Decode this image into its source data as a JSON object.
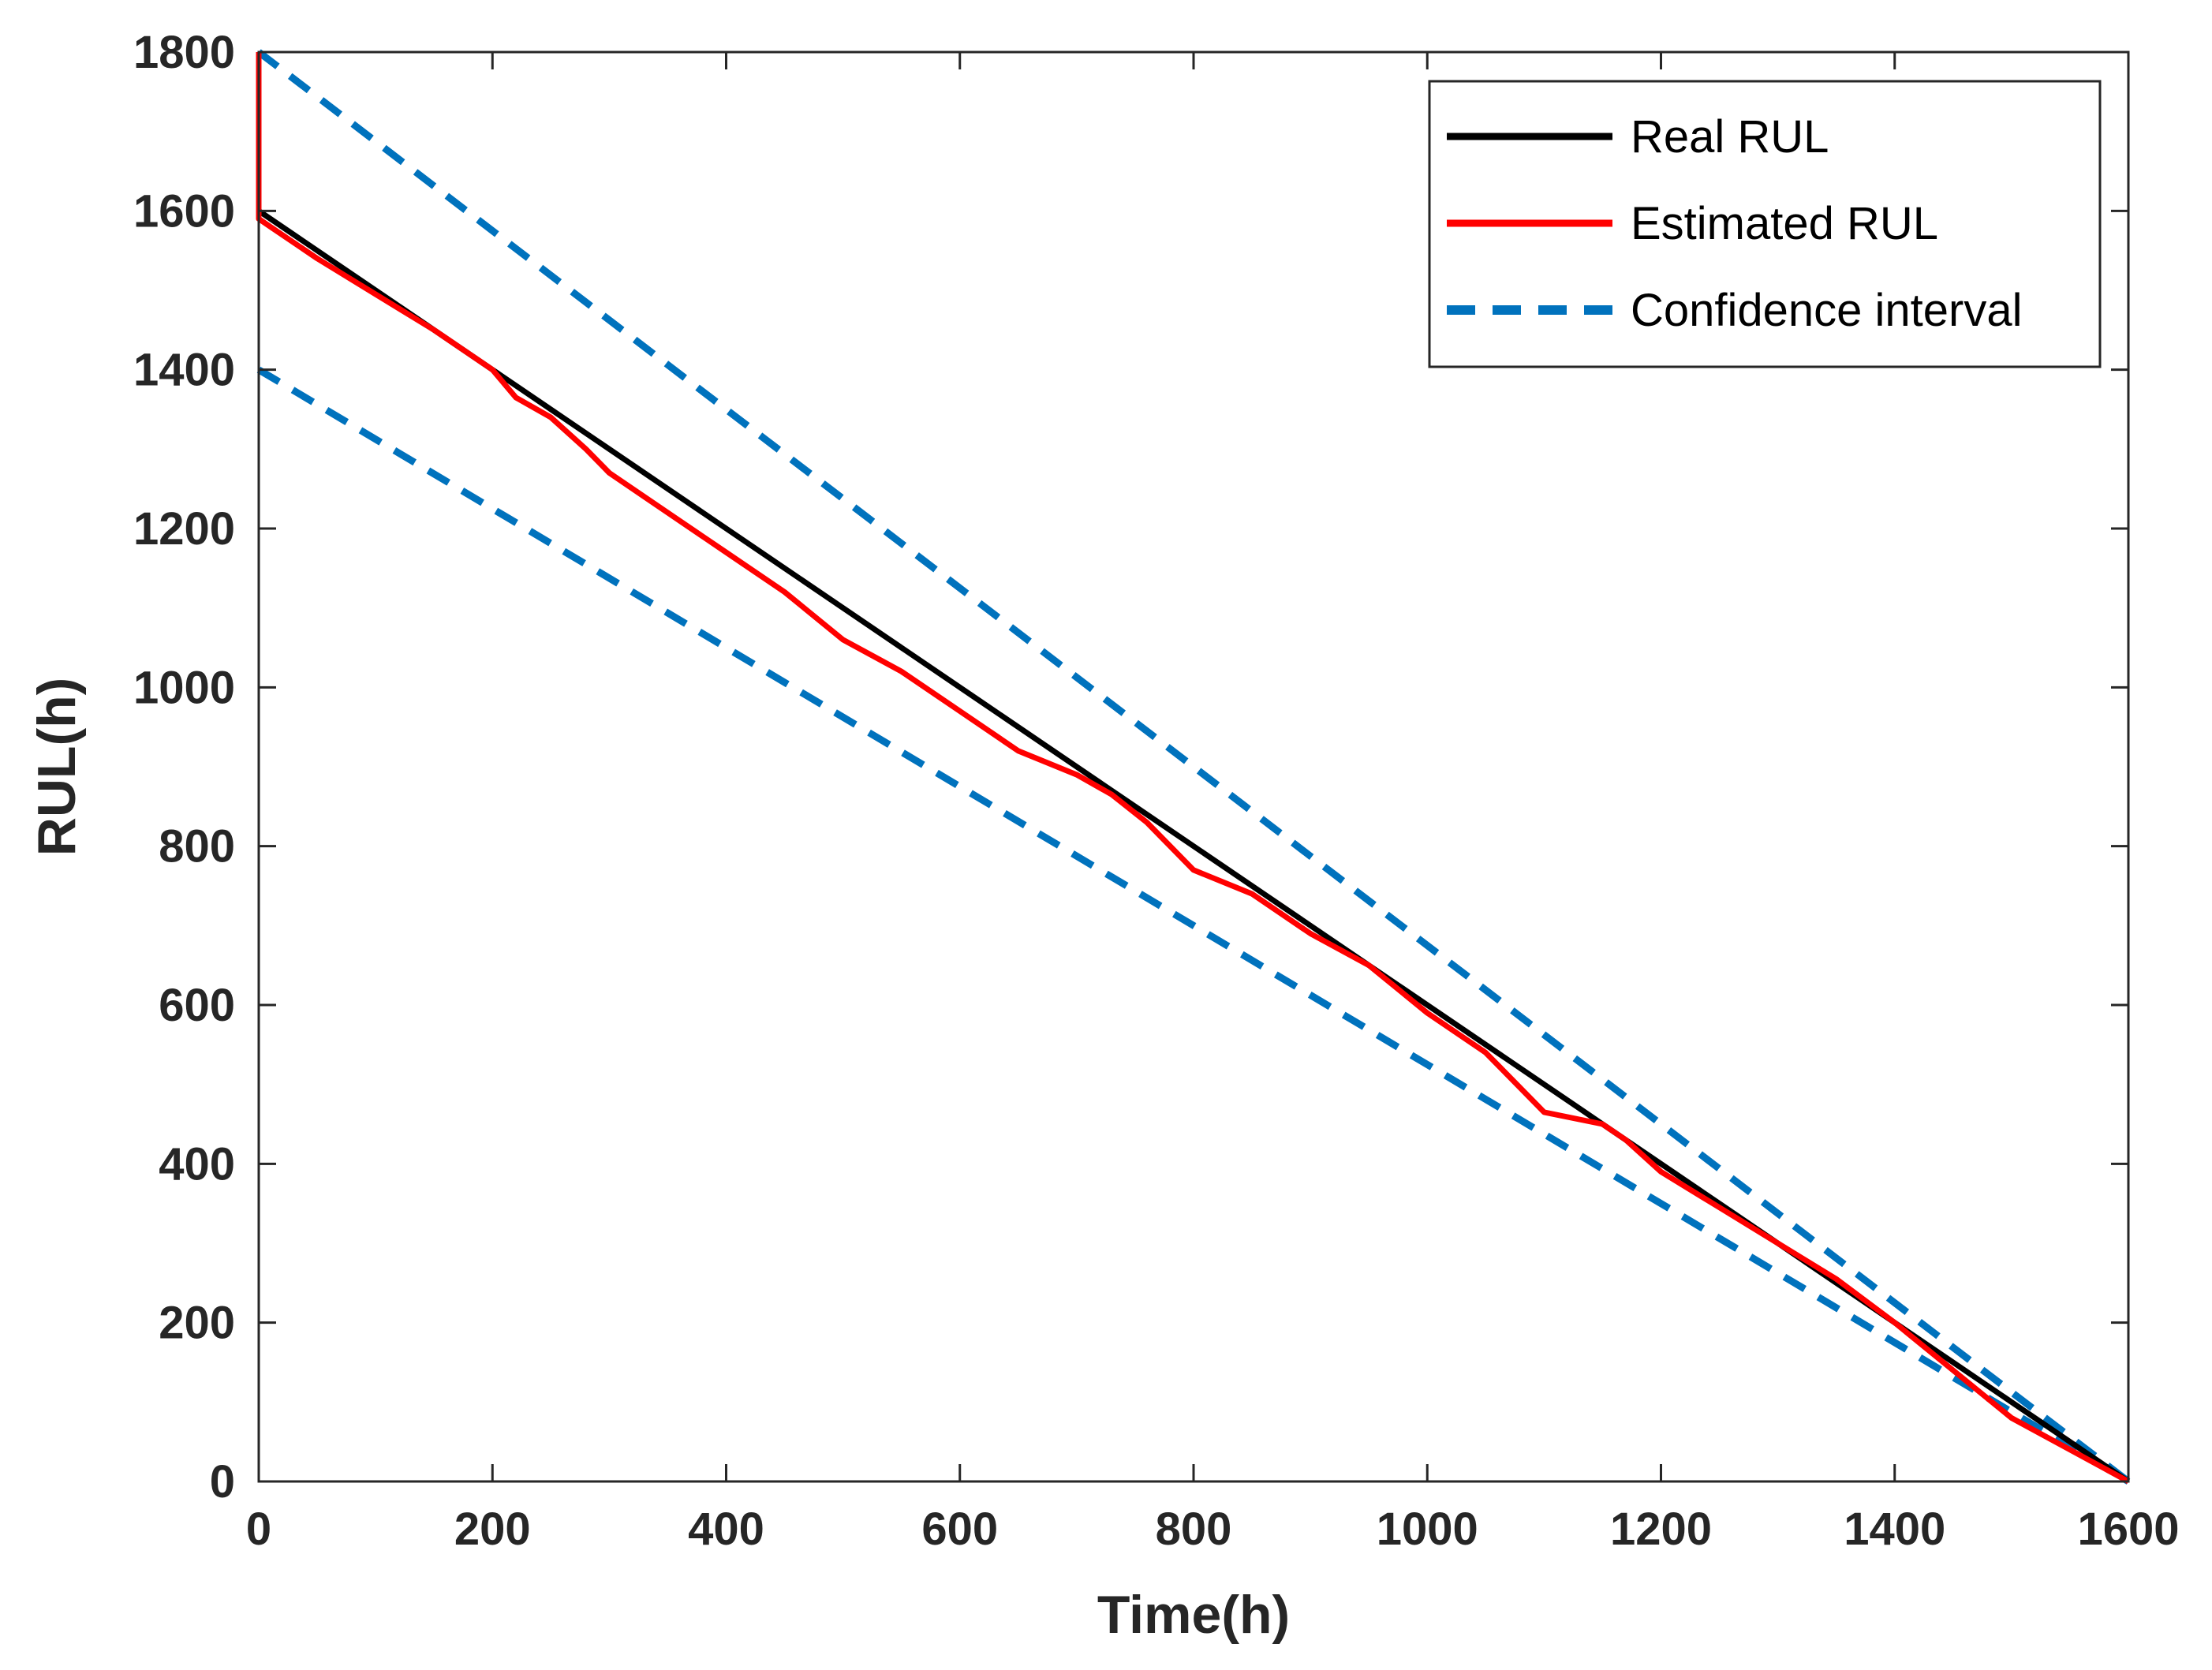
{
  "chart_data": {
    "type": "line",
    "title": "",
    "xlabel": "Time(h)",
    "ylabel": "RUL(h)",
    "xlim": [
      0,
      1600
    ],
    "ylim": [
      0,
      1800
    ],
    "xticks": [
      0,
      200,
      400,
      600,
      800,
      1000,
      1200,
      1400,
      1600
    ],
    "yticks": [
      0,
      200,
      400,
      600,
      800,
      1000,
      1200,
      1400,
      1600,
      1800
    ],
    "grid": false,
    "legend_position": "top-right",
    "series": [
      {
        "name": "Real RUL",
        "color": "#000000",
        "style": "solid",
        "x": [
          0,
          1600
        ],
        "y": [
          1600,
          0
        ]
      },
      {
        "name": "Estimated RUL",
        "color": "#ff0000",
        "style": "solid",
        "x": [
          0,
          0,
          10,
          50,
          100,
          150,
          200,
          220,
          250,
          280,
          300,
          350,
          400,
          450,
          500,
          550,
          600,
          650,
          700,
          730,
          760,
          800,
          850,
          900,
          950,
          1000,
          1050,
          1100,
          1150,
          1170,
          1200,
          1250,
          1300,
          1350,
          1400,
          1450,
          1500,
          1550,
          1600
        ],
        "y": [
          1800,
          1590,
          1580,
          1540,
          1495,
          1450,
          1400,
          1365,
          1340,
          1300,
          1270,
          1220,
          1170,
          1120,
          1060,
          1020,
          970,
          920,
          890,
          865,
          830,
          770,
          740,
          690,
          650,
          590,
          540,
          465,
          450,
          430,
          390,
          345,
          300,
          255,
          200,
          140,
          80,
          40,
          0
        ]
      },
      {
        "name": "Confidence interval",
        "color": "#0072bd",
        "style": "dashed",
        "x": [
          0,
          1600
        ],
        "y": [
          1800,
          0
        ]
      },
      {
        "name": "",
        "color": "#0072bd",
        "style": "dashed",
        "x": [
          0,
          1600
        ],
        "y": [
          1400,
          0
        ]
      }
    ],
    "legend": [
      "Real RUL",
      "Estimated RUL",
      "Confidence interval"
    ]
  }
}
